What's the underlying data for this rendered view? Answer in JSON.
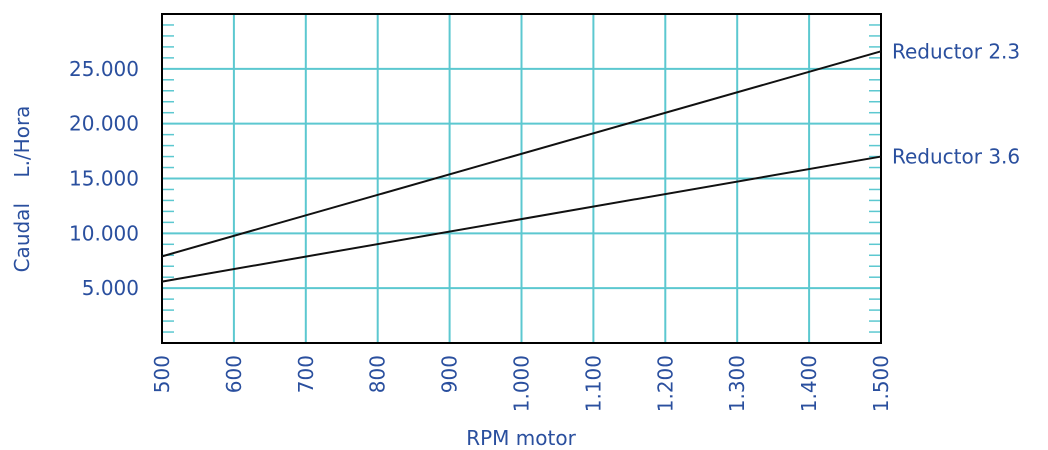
{
  "chart_data": {
    "type": "line",
    "xlabel": "RPM motor",
    "ylabel": "Caudal    L./Hora",
    "xlim": [
      500,
      1500
    ],
    "ylim": [
      0,
      30000
    ],
    "grid": true,
    "x_ticks": [
      "500",
      "600",
      "700",
      "800",
      "900",
      "1.000",
      "1.100",
      "1.200",
      "1.300",
      "1.400",
      "1.500"
    ],
    "y_ticks": [
      "5.000",
      "10.000",
      "15.000",
      "20.000",
      "25.000"
    ],
    "series": [
      {
        "name": "Reductor 2.3",
        "x": [
          500,
          1500
        ],
        "y": [
          7900,
          26600
        ]
      },
      {
        "name": "Reductor 3.6",
        "x": [
          500,
          1500
        ],
        "y": [
          5600,
          17000
        ]
      }
    ],
    "colors": {
      "grid": "#5cc8d0",
      "frame": "#000000",
      "line": "#111111",
      "text": "#2a4f9e"
    }
  }
}
